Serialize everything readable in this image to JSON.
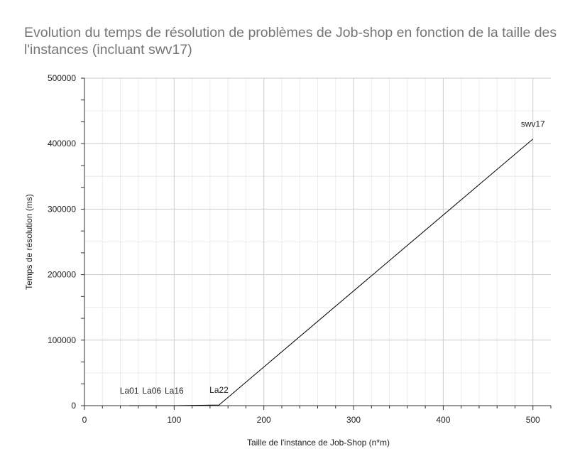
{
  "chart_data": {
    "type": "line",
    "title": "Evolution du temps de résolution de problèmes de Job-shop en fonction de la taille des l'instances (incluant swv17)",
    "xlabel": "Taille de l'instance  de Job-Shop (n*m)",
    "ylabel": "Temps de résolution (ms)",
    "xlim": [
      0,
      520
    ],
    "ylim": [
      0,
      500000
    ],
    "x_ticks": [
      0,
      100,
      200,
      300,
      400,
      500
    ],
    "y_ticks": [
      0,
      100000,
      200000,
      300000,
      400000,
      500000
    ],
    "x_tick_labels": [
      "0",
      "100",
      "200",
      "300",
      "400",
      "500"
    ],
    "y_tick_labels": [
      "0",
      "100000",
      "200000",
      "300000",
      "400000",
      "500000"
    ],
    "grid": true,
    "series": [
      {
        "color": "#000000",
        "points": [
          {
            "x": 50,
            "y": 0,
            "label": "La01"
          },
          {
            "x": 75,
            "y": 0,
            "label": "La06"
          },
          {
            "x": 100,
            "y": 0,
            "label": "La16"
          },
          {
            "x": 150,
            "y": 1000,
            "label": "La22"
          },
          {
            "x": 500,
            "y": 407000,
            "label": "swv17"
          }
        ]
      }
    ]
  }
}
